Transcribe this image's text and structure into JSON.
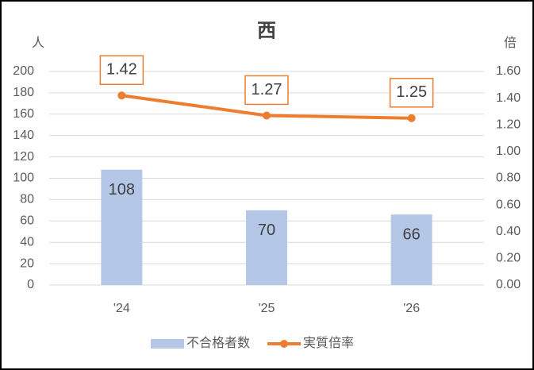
{
  "chart_data": {
    "type": "combo",
    "title": "西",
    "y_label": "人",
    "y2_label": "倍",
    "categories": [
      "'24",
      "'25",
      "'26"
    ],
    "series": [
      {
        "name": "不合格者数",
        "type": "bar",
        "color": "#b4c7e7",
        "values": [
          108,
          70,
          66
        ]
      },
      {
        "name": "実質倍率",
        "type": "line",
        "axis": "y2",
        "color": "#ed7d31",
        "values": [
          1.42,
          1.27,
          1.25
        ]
      }
    ],
    "ylim": [
      0,
      200
    ],
    "yticks": [
      0,
      20,
      40,
      60,
      80,
      100,
      120,
      140,
      160,
      180,
      200
    ],
    "y2lim": [
      0,
      1.6
    ],
    "y2ticks": [
      {
        "value": 0,
        "label": "0.00"
      },
      {
        "value": 0.2,
        "label": "0.20"
      },
      {
        "value": 0.4,
        "label": "0.40"
      },
      {
        "value": 0.6,
        "label": "0.60"
      },
      {
        "value": 0.8,
        "label": "0.80"
      },
      {
        "value": 1.0,
        "label": "1.00"
      },
      {
        "value": 1.2,
        "label": "1.20"
      },
      {
        "value": 1.4,
        "label": "1.40"
      },
      {
        "value": 1.6,
        "label": "1.60"
      }
    ],
    "grid": true,
    "legend": "bottom"
  }
}
